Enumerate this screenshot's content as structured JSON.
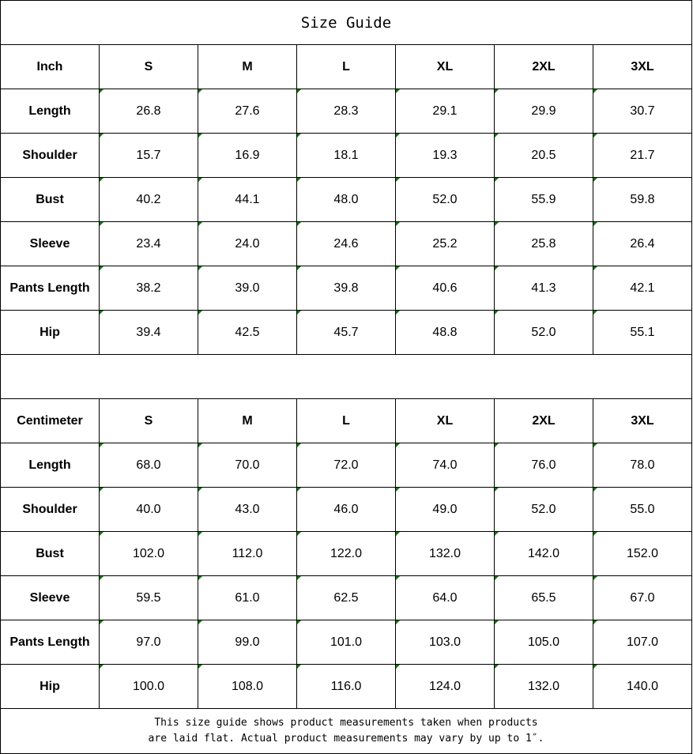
{
  "title": "Size Guide",
  "sizes": [
    "S",
    "M",
    "L",
    "XL",
    "2XL",
    "3XL"
  ],
  "tables": [
    {
      "unit": "Inch",
      "rows": [
        {
          "label": "Length",
          "values": [
            "26.8",
            "27.6",
            "28.3",
            "29.1",
            "29.9",
            "30.7"
          ]
        },
        {
          "label": "Shoulder",
          "values": [
            "15.7",
            "16.9",
            "18.1",
            "19.3",
            "20.5",
            "21.7"
          ]
        },
        {
          "label": "Bust",
          "values": [
            "40.2",
            "44.1",
            "48.0",
            "52.0",
            "55.9",
            "59.8"
          ]
        },
        {
          "label": "Sleeve",
          "values": [
            "23.4",
            "24.0",
            "24.6",
            "25.2",
            "25.8",
            "26.4"
          ]
        },
        {
          "label": "Pants Length",
          "values": [
            "38.2",
            "39.0",
            "39.8",
            "40.6",
            "41.3",
            "42.1"
          ]
        },
        {
          "label": "Hip",
          "values": [
            "39.4",
            "42.5",
            "45.7",
            "48.8",
            "52.0",
            "55.1"
          ]
        }
      ]
    },
    {
      "unit": "Centimeter",
      "rows": [
        {
          "label": "Length",
          "values": [
            "68.0",
            "70.0",
            "72.0",
            "74.0",
            "76.0",
            "78.0"
          ]
        },
        {
          "label": "Shoulder",
          "values": [
            "40.0",
            "43.0",
            "46.0",
            "49.0",
            "52.0",
            "55.0"
          ]
        },
        {
          "label": "Bust",
          "values": [
            "102.0",
            "112.0",
            "122.0",
            "132.0",
            "142.0",
            "152.0"
          ]
        },
        {
          "label": "Sleeve",
          "values": [
            "59.5",
            "61.0",
            "62.5",
            "64.0",
            "65.5",
            "67.0"
          ]
        },
        {
          "label": "Pants Length",
          "values": [
            "97.0",
            "99.0",
            "101.0",
            "103.0",
            "105.0",
            "107.0"
          ]
        },
        {
          "label": "Hip",
          "values": [
            "100.0",
            "108.0",
            "116.0",
            "124.0",
            "132.0",
            "140.0"
          ]
        }
      ]
    }
  ],
  "footer": {
    "line1": "This size guide shows product measurements taken when products",
    "line2": "are laid flat. Actual product measurements may vary by up to 1″."
  },
  "marker_color": "#0a7a0a"
}
